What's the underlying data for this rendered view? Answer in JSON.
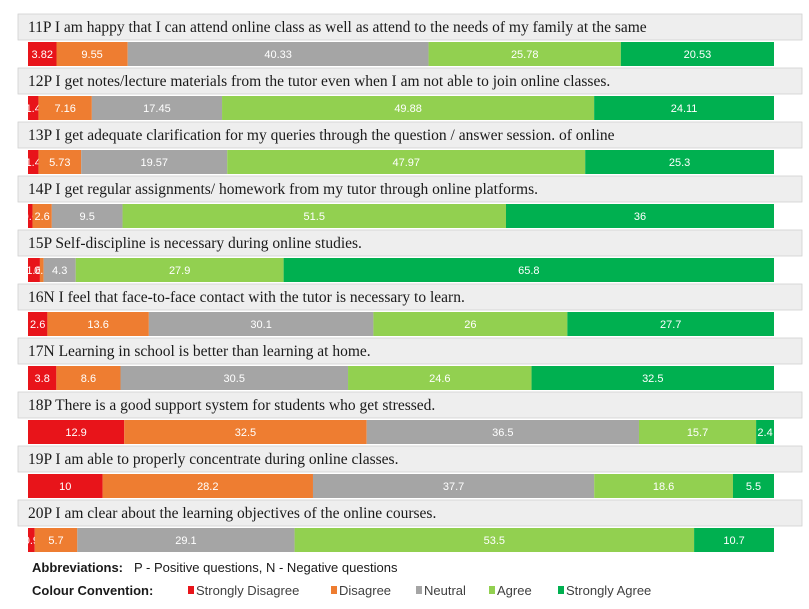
{
  "chart_data": {
    "type": "bar",
    "stacked": true,
    "orientation": "horizontal",
    "series_order": [
      "Strongly Disagree",
      "Disagree",
      "Neutral",
      "Agree",
      "Strongly Agree"
    ],
    "colors": [
      "#e8141a",
      "#ee7d31",
      "#a5a5a5",
      "#92d050",
      "#00b050"
    ],
    "rows": [
      {
        "question": "11P I am happy that I can attend online class as well as attend to the needs of my family at the same",
        "values": [
          3.82,
          9.55,
          40.33,
          25.78,
          20.53
        ],
        "labels": [
          "3.82",
          "9.55",
          "40.33",
          "25.78",
          "20.53"
        ]
      },
      {
        "question": "12P I get notes/lecture materials from the tutor even when I am not able to join online classes.",
        "values": [
          1.4,
          7.16,
          17.45,
          49.88,
          24.11
        ],
        "labels": [
          "1.4",
          "7.16",
          "17.45",
          "49.88",
          "24.11"
        ]
      },
      {
        "question": "13P I get adequate clarification for my queries through the question / answer session. of online",
        "values": [
          1.4,
          5.73,
          19.57,
          47.97,
          25.3
        ],
        "labels": [
          "1.4",
          "5.73",
          "19.57",
          "47.97",
          "25.3"
        ]
      },
      {
        "question": "14P I get regular assignments/ homework from my tutor through online platforms.",
        "values": [
          0.6,
          2.6,
          9.5,
          51.5,
          36
        ],
        "labels": [
          "0.6",
          "2.6",
          "9.5",
          "51.5",
          "36"
        ]
      },
      {
        "question": "15P Self-discipline is necessary during online studies.",
        "values": [
          1.6,
          0.5,
          4.3,
          27.9,
          65.8
        ],
        "labels": [
          "1.6",
          "0.5",
          "4.3",
          "27.9",
          "65.8"
        ]
      },
      {
        "question": "16N I feel that face-to-face contact with the tutor is necessary to learn.",
        "values": [
          2.6,
          13.6,
          30.1,
          26,
          27.7
        ],
        "labels": [
          "2.6",
          "13.6",
          "30.1",
          "26",
          "27.7"
        ]
      },
      {
        "question": "17N Learning in school is better than learning at home.",
        "values": [
          3.8,
          8.6,
          30.5,
          24.6,
          32.5
        ],
        "labels": [
          "3.8",
          "8.6",
          "30.5",
          "24.6",
          "32.5"
        ]
      },
      {
        "question": "18P There is a good support system for students who get stressed.",
        "values": [
          12.9,
          32.5,
          36.5,
          15.7,
          2.4
        ],
        "labels": [
          "12.9",
          "32.5",
          "36.5",
          "15.7",
          "2.4"
        ]
      },
      {
        "question": "19P I am able to properly concentrate during online classes.",
        "values": [
          10,
          28.2,
          37.7,
          18.6,
          5.5
        ],
        "labels": [
          "10",
          "28.2",
          "37.7",
          "18.6",
          "5.5"
        ]
      },
      {
        "question": "20P I am clear about the learning objectives of the online courses.",
        "values": [
          0.9,
          5.7,
          29.1,
          53.5,
          10.7
        ],
        "labels": [
          "0.9",
          "5.7",
          "29.1",
          "53.5",
          "10.7"
        ]
      }
    ]
  },
  "footer": {
    "abbreviations_label": "Abbreviations:",
    "abbreviations_text": "P - Positive questions, N - Negative questions",
    "colour_label": "Colour Convention:",
    "legend": [
      "Strongly Disagree",
      "Disagree",
      "Neutral",
      "Agree",
      "Strongly Agree"
    ]
  }
}
